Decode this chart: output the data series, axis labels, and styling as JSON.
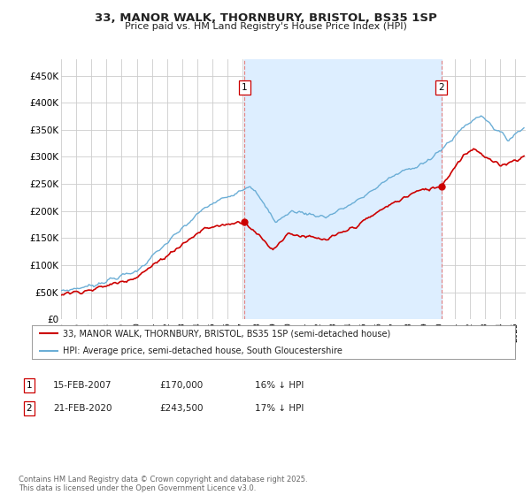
{
  "title_line1": "33, MANOR WALK, THORNBURY, BRISTOL, BS35 1SP",
  "title_line2": "Price paid vs. HM Land Registry's House Price Index (HPI)",
  "yticks": [
    0,
    50000,
    100000,
    150000,
    200000,
    250000,
    300000,
    350000,
    400000,
    450000
  ],
  "ytick_labels": [
    "£0",
    "£50K",
    "£100K",
    "£150K",
    "£200K",
    "£250K",
    "£300K",
    "£350K",
    "£400K",
    "£450K"
  ],
  "hpi_color": "#6baed6",
  "price_color": "#cc0000",
  "vline_color": "#e08080",
  "shading_color": "#ddeeff",
  "annotation_border_color": "#cc0000",
  "sale1_x": 2007.12,
  "sale2_x": 2020.13,
  "sale1_label": "1",
  "sale2_label": "2",
  "legend_line1": "33, MANOR WALK, THORNBURY, BRISTOL, BS35 1SP (semi-detached house)",
  "legend_line2": "HPI: Average price, semi-detached house, South Gloucestershire",
  "table_row1": [
    "1",
    "15-FEB-2007",
    "£170,000",
    "16% ↓ HPI"
  ],
  "table_row2": [
    "2",
    "21-FEB-2020",
    "£243,500",
    "17% ↓ HPI"
  ],
  "footer": "Contains HM Land Registry data © Crown copyright and database right 2025.\nThis data is licensed under the Open Government Licence v3.0.",
  "bg_color": "#ffffff",
  "grid_color": "#cccccc"
}
